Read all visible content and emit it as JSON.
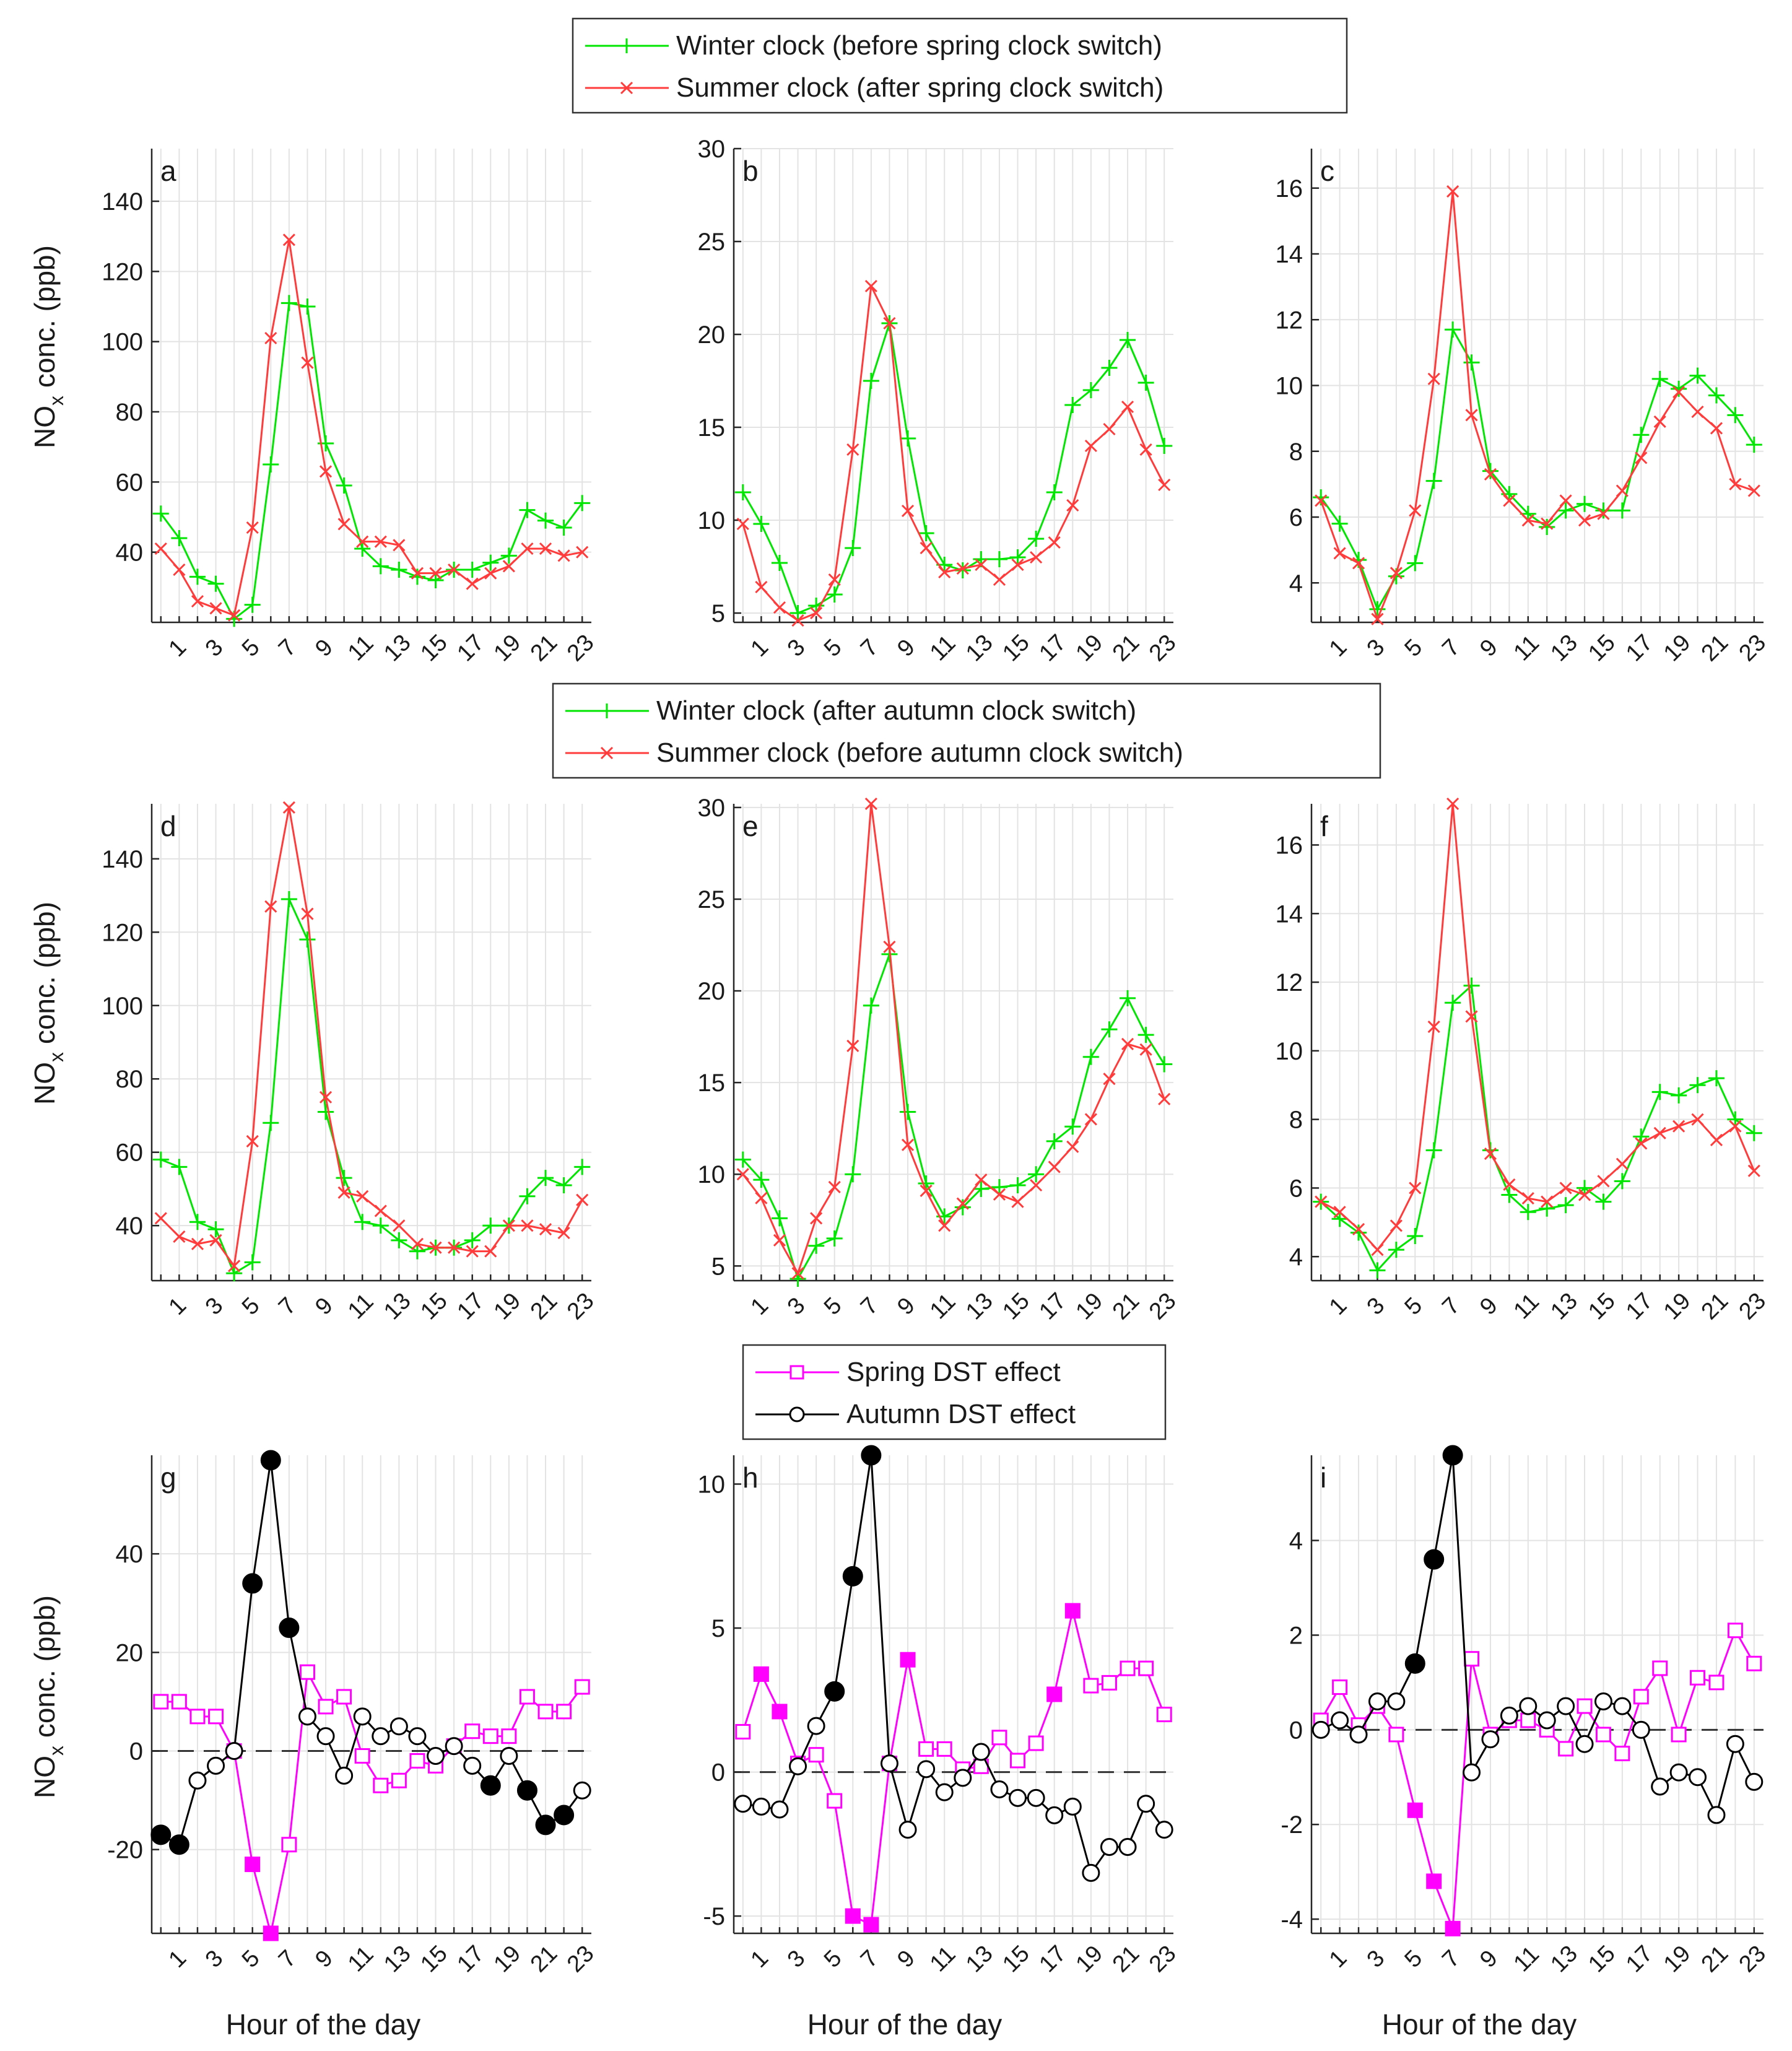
{
  "legends": [
    {
      "entries": [
        {
          "label": "Winter clock (before spring clock switch)",
          "color": "#00e600",
          "marker": "plus"
        },
        {
          "label": "Summer clock (after spring clock switch)",
          "color": "#ff3b3b",
          "marker": "cross"
        }
      ]
    },
    {
      "entries": [
        {
          "label": "Winter clock (after autumn clock switch)",
          "color": "#00e600",
          "marker": "plus"
        },
        {
          "label": "Summer clock (before autumn clock switch)",
          "color": "#ff3b3b",
          "marker": "cross"
        }
      ]
    },
    {
      "entries": [
        {
          "label": "Spring DST effect",
          "color": "#ff00ff",
          "marker": "square"
        },
        {
          "label": "Autumn DST effect",
          "color": "#000000",
          "marker": "circle"
        }
      ]
    }
  ],
  "ylabel_main": "NO",
  "ylabel_sub": "x",
  "ylabel_rest": " conc. (ppb)",
  "xlabel": "Hour of the day",
  "x_tick_labels": [
    "1",
    "3",
    "5",
    "7",
    "9",
    "11",
    "13",
    "15",
    "17",
    "19",
    "21",
    "23"
  ],
  "colors": {
    "winter": "#00e600",
    "summer": "#ff3b3b",
    "spring": "#ff00ff",
    "autumn": "#000000"
  },
  "chart_data": [
    {
      "panel": "a",
      "type": "line",
      "row": 0,
      "col": 0,
      "x": [
        0,
        1,
        2,
        3,
        4,
        5,
        6,
        7,
        8,
        9,
        10,
        11,
        12,
        13,
        14,
        15,
        16,
        17,
        18,
        19,
        20,
        21,
        22,
        23
      ],
      "ylim": [
        20,
        155
      ],
      "yticks": [
        40,
        60,
        80,
        100,
        120,
        140
      ],
      "grid": true,
      "series": [
        {
          "name": "Winter clock (before spring clock switch)",
          "key": "winter",
          "marker": "plus",
          "values": [
            51,
            44,
            33,
            31,
            21,
            25,
            65,
            111,
            110,
            71,
            59,
            41,
            36,
            35,
            33,
            32,
            35,
            35,
            37,
            39,
            52,
            49,
            47,
            54
          ]
        },
        {
          "name": "Summer clock (after spring clock switch)",
          "key": "summer",
          "marker": "cross",
          "values": [
            41,
            35,
            26,
            24,
            22,
            47,
            101,
            129,
            94,
            63,
            48,
            43,
            43,
            42,
            34,
            34,
            35,
            31,
            34,
            36,
            41,
            41,
            39,
            40
          ]
        }
      ]
    },
    {
      "panel": "b",
      "type": "line",
      "row": 0,
      "col": 1,
      "x": [
        0,
        1,
        2,
        3,
        4,
        5,
        6,
        7,
        8,
        9,
        10,
        11,
        12,
        13,
        14,
        15,
        16,
        17,
        18,
        19,
        20,
        21,
        22,
        23
      ],
      "ylim": [
        4.5,
        30
      ],
      "yticks": [
        5,
        10,
        15,
        20,
        25,
        30
      ],
      "grid": true,
      "series": [
        {
          "name": "Winter clock (before spring clock switch)",
          "key": "winter",
          "marker": "plus",
          "values": [
            11.5,
            9.8,
            7.7,
            5.0,
            5.4,
            6.0,
            8.5,
            17.5,
            20.6,
            14.4,
            9.3,
            7.6,
            7.3,
            7.9,
            7.9,
            8.0,
            9.0,
            11.5,
            16.2,
            17.0,
            18.2,
            19.7,
            17.4,
            14.0
          ]
        },
        {
          "name": "Summer clock (after spring clock switch)",
          "key": "summer",
          "marker": "cross",
          "values": [
            9.8,
            6.4,
            5.3,
            4.6,
            5.0,
            6.8,
            13.8,
            22.6,
            20.6,
            10.5,
            8.5,
            7.2,
            7.4,
            7.6,
            6.8,
            7.6,
            8.0,
            8.8,
            10.8,
            14.0,
            14.9,
            16.1,
            13.8,
            11.9
          ]
        }
      ]
    },
    {
      "panel": "c",
      "type": "line",
      "row": 0,
      "col": 2,
      "x": [
        0,
        1,
        2,
        3,
        4,
        5,
        6,
        7,
        8,
        9,
        10,
        11,
        12,
        13,
        14,
        15,
        16,
        17,
        18,
        19,
        20,
        21,
        22,
        23
      ],
      "ylim": [
        2.8,
        17.2
      ],
      "yticks": [
        4,
        6,
        8,
        10,
        12,
        14,
        16
      ],
      "grid": true,
      "series": [
        {
          "name": "Winter clock (before spring clock switch)",
          "key": "winter",
          "marker": "plus",
          "values": [
            6.6,
            5.8,
            4.7,
            3.2,
            4.2,
            4.6,
            7.1,
            11.7,
            10.7,
            7.4,
            6.7,
            6.1,
            5.7,
            6.2,
            6.4,
            6.2,
            6.2,
            8.5,
            10.2,
            9.9,
            10.3,
            9.7,
            9.1,
            8.2
          ]
        },
        {
          "name": "Summer clock (after spring clock switch)",
          "key": "summer",
          "marker": "cross",
          "values": [
            6.5,
            4.9,
            4.6,
            2.9,
            4.3,
            6.2,
            10.2,
            15.9,
            9.1,
            7.3,
            6.5,
            5.9,
            5.8,
            6.5,
            5.9,
            6.1,
            6.8,
            7.8,
            8.9,
            9.8,
            9.2,
            8.7,
            7.0,
            6.8
          ]
        }
      ]
    },
    {
      "panel": "d",
      "type": "line",
      "row": 1,
      "col": 0,
      "x": [
        0,
        1,
        2,
        3,
        4,
        5,
        6,
        7,
        8,
        9,
        10,
        11,
        12,
        13,
        14,
        15,
        16,
        17,
        18,
        19,
        20,
        21,
        22,
        23
      ],
      "ylim": [
        25,
        155
      ],
      "yticks": [
        40,
        60,
        80,
        100,
        120,
        140
      ],
      "grid": true,
      "series": [
        {
          "name": "Winter clock (after autumn clock switch)",
          "key": "winter",
          "marker": "plus",
          "values": [
            58,
            56,
            41,
            39,
            27,
            30,
            68,
            129,
            118,
            71,
            53,
            41,
            40,
            36,
            33,
            34,
            34,
            36,
            40,
            40,
            48,
            53,
            51,
            56
          ]
        },
        {
          "name": "Summer clock (before autumn clock switch)",
          "key": "summer",
          "marker": "cross",
          "values": [
            42,
            37,
            35,
            36,
            29,
            63,
            127,
            154,
            125,
            75,
            49,
            48,
            44,
            40,
            35,
            34,
            34,
            33,
            33,
            40,
            40,
            39,
            38,
            47
          ]
        }
      ]
    },
    {
      "panel": "e",
      "type": "line",
      "row": 1,
      "col": 1,
      "x": [
        0,
        1,
        2,
        3,
        4,
        5,
        6,
        7,
        8,
        9,
        10,
        11,
        12,
        13,
        14,
        15,
        16,
        17,
        18,
        19,
        20,
        21,
        22,
        23
      ],
      "ylim": [
        4.2,
        30.2
      ],
      "yticks": [
        5,
        10,
        15,
        20,
        25,
        30
      ],
      "grid": true,
      "series": [
        {
          "name": "Winter clock (after autumn clock switch)",
          "key": "winter",
          "marker": "plus",
          "values": [
            10.8,
            9.7,
            7.6,
            4.3,
            6.1,
            6.5,
            10.0,
            19.2,
            22.0,
            13.4,
            9.5,
            7.7,
            8.2,
            9.2,
            9.3,
            9.4,
            10.0,
            11.8,
            12.6,
            16.4,
            17.9,
            19.6,
            17.6,
            16.0
          ]
        },
        {
          "name": "Summer clock (before autumn clock switch)",
          "key": "summer",
          "marker": "cross",
          "values": [
            10.0,
            8.7,
            6.4,
            4.6,
            7.6,
            9.3,
            17.0,
            30.2,
            22.4,
            11.6,
            9.1,
            7.2,
            8.4,
            9.7,
            8.9,
            8.5,
            9.4,
            10.4,
            11.5,
            13.0,
            15.2,
            17.1,
            16.8,
            14.1
          ]
        }
      ]
    },
    {
      "panel": "f",
      "type": "line",
      "row": 1,
      "col": 2,
      "x": [
        0,
        1,
        2,
        3,
        4,
        5,
        6,
        7,
        8,
        9,
        10,
        11,
        12,
        13,
        14,
        15,
        16,
        17,
        18,
        19,
        20,
        21,
        22,
        23
      ],
      "ylim": [
        3.3,
        17.2
      ],
      "yticks": [
        4,
        6,
        8,
        10,
        12,
        14,
        16
      ],
      "grid": true,
      "series": [
        {
          "name": "Winter clock (after autumn clock switch)",
          "key": "winter",
          "marker": "plus",
          "values": [
            5.6,
            5.1,
            4.7,
            3.6,
            4.2,
            4.6,
            7.1,
            11.4,
            11.9,
            7.1,
            5.8,
            5.3,
            5.4,
            5.5,
            6.0,
            5.6,
            6.2,
            7.5,
            8.8,
            8.7,
            9.0,
            9.2,
            8.0,
            7.6
          ]
        },
        {
          "name": "Summer clock (before autumn clock switch)",
          "key": "summer",
          "marker": "cross",
          "values": [
            5.6,
            5.3,
            4.8,
            4.2,
            4.9,
            6.0,
            10.7,
            17.2,
            11.0,
            7.0,
            6.1,
            5.7,
            5.6,
            6.0,
            5.8,
            6.2,
            6.7,
            7.3,
            7.6,
            7.8,
            8.0,
            7.4,
            7.8,
            6.5
          ]
        }
      ]
    },
    {
      "panel": "g",
      "type": "line",
      "row": 2,
      "col": 0,
      "x": [
        0,
        1,
        2,
        3,
        4,
        5,
        6,
        7,
        8,
        9,
        10,
        11,
        12,
        13,
        14,
        15,
        16,
        17,
        18,
        19,
        20,
        21,
        22,
        23
      ],
      "ylim": [
        -37,
        60
      ],
      "yticks": [
        -20,
        0,
        20,
        40
      ],
      "grid": true,
      "zero_line": true,
      "series": [
        {
          "name": "Spring DST effect",
          "key": "spring",
          "marker": "square",
          "values": [
            10,
            10,
            7,
            7,
            0,
            -23,
            -37,
            -19,
            16,
            9,
            11,
            -1,
            -7,
            -6,
            -2,
            -3,
            1,
            4,
            3,
            3,
            11,
            8,
            8,
            13
          ],
          "filled": [
            5,
            6
          ]
        },
        {
          "name": "Autumn DST effect",
          "key": "autumn",
          "marker": "circle",
          "values": [
            -17,
            -19,
            -6,
            -3,
            0,
            34,
            59,
            25,
            7,
            3,
            -5,
            7,
            3,
            5,
            3,
            -1,
            1,
            -3,
            -7,
            -1,
            -8,
            -15,
            -13,
            -8
          ],
          "filled": [
            0,
            1,
            5,
            6,
            7,
            18,
            20,
            21,
            22
          ]
        }
      ]
    },
    {
      "panel": "h",
      "type": "line",
      "row": 2,
      "col": 1,
      "x": [
        0,
        1,
        2,
        3,
        4,
        5,
        6,
        7,
        8,
        9,
        10,
        11,
        12,
        13,
        14,
        15,
        16,
        17,
        18,
        19,
        20,
        21,
        22,
        23
      ],
      "ylim": [
        -5.6,
        11
      ],
      "yticks": [
        -5,
        0,
        5,
        10
      ],
      "grid": true,
      "zero_line": true,
      "series": [
        {
          "name": "Spring DST effect",
          "key": "spring",
          "marker": "square",
          "values": [
            1.4,
            3.4,
            2.1,
            0.3,
            0.6,
            -1.0,
            -5.0,
            -5.3,
            0.3,
            3.9,
            0.8,
            0.8,
            0.1,
            0.2,
            1.2,
            0.4,
            1.0,
            2.7,
            5.6,
            3.0,
            3.1,
            3.6,
            3.6,
            2.0
          ],
          "filled": [
            1,
            2,
            6,
            7,
            9,
            17,
            18
          ]
        },
        {
          "name": "Autumn DST effect",
          "key": "autumn",
          "marker": "circle",
          "values": [
            -1.1,
            -1.2,
            -1.3,
            0.2,
            1.6,
            2.8,
            6.8,
            11.0,
            0.3,
            -2.0,
            0.1,
            -0.7,
            -0.2,
            0.7,
            -0.6,
            -0.9,
            -0.9,
            -1.5,
            -1.2,
            -3.5,
            -2.6,
            -2.6,
            -1.1,
            -2.0
          ],
          "filled": [
            5,
            6,
            7
          ]
        }
      ]
    },
    {
      "panel": "i",
      "type": "line",
      "row": 2,
      "col": 2,
      "x": [
        0,
        1,
        2,
        3,
        4,
        5,
        6,
        7,
        8,
        9,
        10,
        11,
        12,
        13,
        14,
        15,
        16,
        17,
        18,
        19,
        20,
        21,
        22,
        23
      ],
      "ylim": [
        -4.3,
        5.8
      ],
      "yticks": [
        -4,
        -2,
        0,
        2,
        4
      ],
      "grid": true,
      "zero_line": true,
      "series": [
        {
          "name": "Spring DST effect",
          "key": "spring",
          "marker": "square",
          "values": [
            0.2,
            0.9,
            0.1,
            0.5,
            -0.1,
            -1.7,
            -3.2,
            -4.2,
            1.5,
            -0.1,
            0.2,
            0.2,
            0.0,
            -0.4,
            0.5,
            -0.1,
            -0.5,
            0.7,
            1.3,
            -0.1,
            1.1,
            1.0,
            2.1,
            1.4
          ],
          "filled": [
            5,
            6,
            7
          ]
        },
        {
          "name": "Autumn DST effect",
          "key": "autumn",
          "marker": "circle",
          "values": [
            0.0,
            0.2,
            -0.1,
            0.6,
            0.6,
            1.4,
            3.6,
            5.8,
            -0.9,
            -0.2,
            0.3,
            0.5,
            0.2,
            0.5,
            -0.3,
            0.6,
            0.5,
            0.0,
            -1.2,
            -0.9,
            -1.0,
            -1.8,
            -0.3,
            -1.1
          ],
          "filled": [
            5,
            6,
            7
          ]
        }
      ]
    }
  ]
}
